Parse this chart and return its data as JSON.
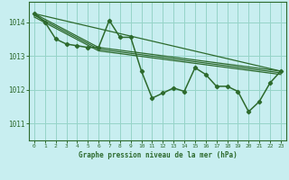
{
  "background_color": "#c8eef0",
  "grid_color": "#96d4c8",
  "line_color": "#2d6a2d",
  "title": "Graphe pression niveau de la mer (hPa)",
  "xlim": [
    -0.5,
    23.5
  ],
  "ylim": [
    1010.5,
    1014.6
  ],
  "yticks": [
    1011,
    1012,
    1013,
    1014
  ],
  "xticks": [
    0,
    1,
    2,
    3,
    4,
    5,
    6,
    7,
    8,
    9,
    10,
    11,
    12,
    13,
    14,
    15,
    16,
    17,
    18,
    19,
    20,
    21,
    22,
    23
  ],
  "main_line": {
    "x": [
      0,
      1,
      2,
      3,
      4,
      5,
      6,
      7,
      8,
      9,
      10,
      11,
      12,
      13,
      14,
      15,
      16,
      17,
      18,
      19,
      20,
      21,
      22,
      23
    ],
    "y": [
      1014.25,
      1014.0,
      1013.5,
      1013.35,
      1013.3,
      1013.25,
      1013.25,
      1014.05,
      1013.55,
      1013.55,
      1012.55,
      1011.75,
      1011.9,
      1012.05,
      1011.95,
      1012.65,
      1012.45,
      1012.1,
      1012.1,
      1011.95,
      1011.35,
      1011.65,
      1012.2,
      1012.55
    ]
  },
  "straight_line1": {
    "x": [
      0,
      23
    ],
    "y": [
      1014.25,
      1012.55
    ]
  },
  "straight_line2": {
    "x": [
      0,
      6,
      23
    ],
    "y": [
      1014.25,
      1013.25,
      1012.55
    ]
  },
  "straight_line3": {
    "x": [
      0,
      6,
      23
    ],
    "y": [
      1014.2,
      1013.2,
      1012.5
    ]
  },
  "straight_line4": {
    "x": [
      0,
      6,
      23
    ],
    "y": [
      1014.15,
      1013.15,
      1012.45
    ]
  }
}
